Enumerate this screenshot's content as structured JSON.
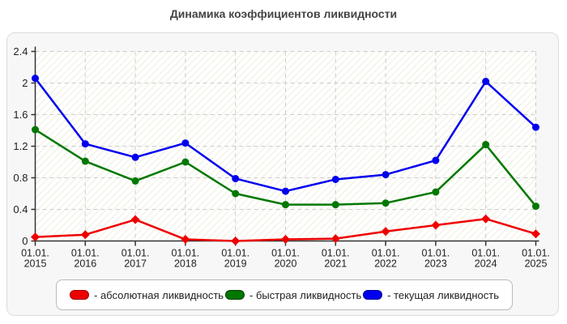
{
  "title": "Динамика коэффициентов ликвидности",
  "colors": {
    "panel_bg": "#f7f7f7",
    "panel_border": "#dcdcdc",
    "plot_bg": "#ffffff",
    "plot_hatch": "#eeeedd",
    "grid": "#cccccc",
    "axis": "#333333",
    "tick_text": "#222222",
    "title_text": "#444444"
  },
  "legend": {
    "items": [
      {
        "label": "- абсолютная ликвидность",
        "color": "#ee0000",
        "border": "#990000"
      },
      {
        "label": "- быстрая ликвидность",
        "color": "#007800",
        "border": "#003c00"
      },
      {
        "label": "- текущая ликвидность",
        "color": "#0000ee",
        "border": "#000099"
      }
    ]
  },
  "chart_data": {
    "type": "line",
    "title": "Динамика коэффициентов ликвидности",
    "xlabel": "",
    "ylabel": "",
    "ylim": [
      0,
      2.4
    ],
    "ytick_step": 0.4,
    "grid": true,
    "legend_position": "bottom",
    "categories": [
      "01.01.2015",
      "01.01.2016",
      "01.01.2017",
      "01.01.2018",
      "01.01.2019",
      "01.01.2020",
      "01.01.2021",
      "01.01.2022",
      "01.01.2023",
      "01.01.2024",
      "01.01.2025"
    ],
    "series": [
      {
        "name": "абсолютная ликвидность",
        "color": "#ee0000",
        "marker": "diamond",
        "values": [
          0.05,
          0.08,
          0.27,
          0.02,
          0.0,
          0.02,
          0.03,
          0.12,
          0.2,
          0.28,
          0.09
        ]
      },
      {
        "name": "быстрая ликвидность",
        "color": "#007800",
        "marker": "circle",
        "values": [
          1.41,
          1.01,
          0.76,
          1.0,
          0.6,
          0.46,
          0.46,
          0.48,
          0.62,
          1.22,
          0.44
        ]
      },
      {
        "name": "текущая ликвидность",
        "color": "#0000ee",
        "marker": "circle",
        "values": [
          2.06,
          1.23,
          1.06,
          1.24,
          0.79,
          0.63,
          0.78,
          0.84,
          1.02,
          2.02,
          1.44
        ]
      }
    ]
  }
}
